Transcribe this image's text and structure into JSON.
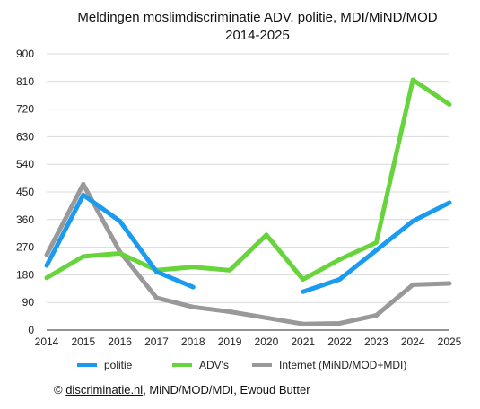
{
  "chart_data": {
    "type": "line",
    "title": "Meldingen moslimdiscriminatie ADV, politie, MDI/MiND/MOD",
    "subtitle": "2014-2025",
    "xlabel": "",
    "ylabel": "",
    "ylim": [
      0,
      900
    ],
    "yticks": [
      0,
      90,
      180,
      270,
      360,
      450,
      540,
      630,
      720,
      810,
      900
    ],
    "categories": [
      "2014",
      "2015",
      "2016",
      "2017",
      "2018",
      "2019",
      "2020",
      "2021",
      "2022",
      "2023",
      "2024",
      "2025"
    ],
    "grid": true,
    "legend_position": "bottom",
    "series": [
      {
        "name": "politie",
        "color": "#1a9bf0",
        "values": [
          210,
          440,
          355,
          190,
          140,
          null,
          null,
          125,
          165,
          260,
          355,
          415
        ]
      },
      {
        "name": "ADV's",
        "color": "#66d43a",
        "values": [
          170,
          240,
          250,
          195,
          205,
          195,
          310,
          165,
          230,
          285,
          815,
          735
        ]
      },
      {
        "name": "Internet (MiND/MOD+MDI)",
        "color": "#999999",
        "values": [
          245,
          475,
          255,
          105,
          75,
          60,
          40,
          20,
          22,
          48,
          148,
          152
        ]
      }
    ]
  },
  "source": {
    "prefix": "© ",
    "link": "discriminatie.nl",
    "suffix": ", MiND/MOD/MDI, Ewoud Butter"
  }
}
